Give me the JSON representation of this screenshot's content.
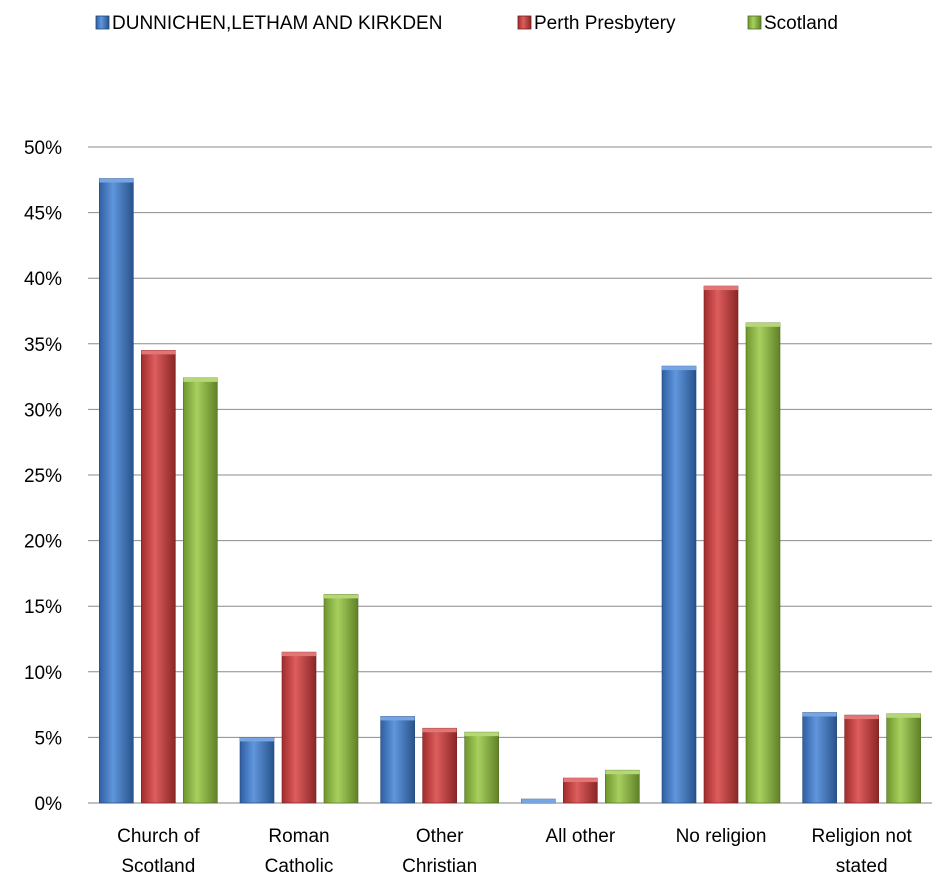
{
  "chart_data": {
    "type": "bar",
    "categories": [
      [
        "Church of",
        "Scotland"
      ],
      [
        "Roman",
        "Catholic"
      ],
      [
        "Other",
        "Christian"
      ],
      [
        "All other"
      ],
      [
        "No religion"
      ],
      [
        "Religion not",
        "stated"
      ]
    ],
    "series": [
      {
        "name": "DUNNICHEN,LETHAM AND KIRKDEN",
        "color": "#3d7fd6",
        "values": [
          47.6,
          5.0,
          6.6,
          0.3,
          33.3,
          6.9
        ]
      },
      {
        "name": "Perth Presbytery",
        "color": "#d63a3a",
        "values": [
          34.5,
          11.5,
          5.7,
          1.9,
          39.4,
          6.7
        ]
      },
      {
        "name": "Scotland",
        "color": "#94c63c",
        "values": [
          32.4,
          15.9,
          5.4,
          2.5,
          36.6,
          6.8
        ]
      }
    ],
    "ylim": [
      0,
      50
    ],
    "yticks": [
      "0%",
      "5%",
      "10%",
      "15%",
      "20%",
      "25%",
      "30%",
      "35%",
      "40%",
      "45%",
      "50%"
    ],
    "grid": true,
    "legend_position": "top"
  }
}
